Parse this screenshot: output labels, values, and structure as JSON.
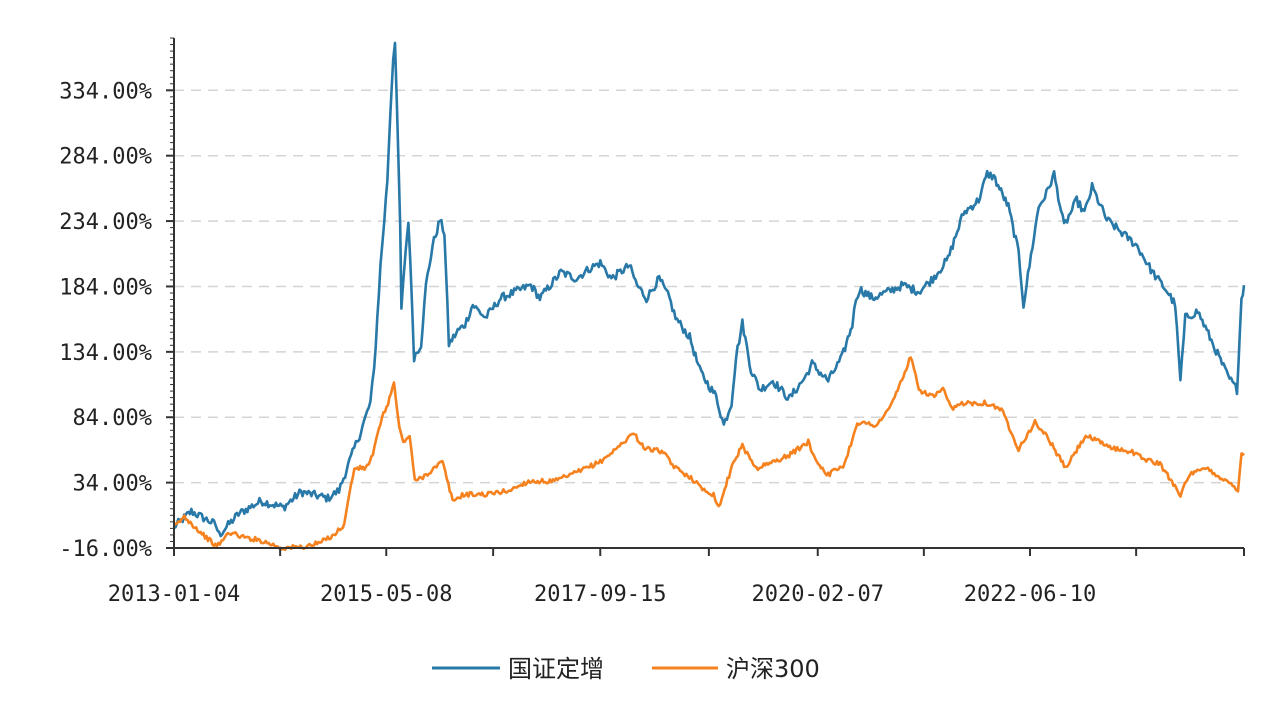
{
  "chart_data": {
    "type": "line",
    "title": "",
    "xlabel": "",
    "ylabel": "",
    "x_range": [
      "2013-01-04",
      "2024-10-18"
    ],
    "x_ticks": [
      "2013-01-04",
      "2015-05-08",
      "2017-09-15",
      "2020-02-07",
      "2022-06-10"
    ],
    "ylim": [
      -16,
      374
    ],
    "y_ticks": [
      -16,
      34,
      84,
      134,
      184,
      234,
      284,
      334
    ],
    "y_tick_labels": [
      "-16.00%",
      "34.00%",
      "84.00%",
      "134.00%",
      "184.00%",
      "234.00%",
      "284.00%",
      "334.00%"
    ],
    "y_unit": "%",
    "grid": "horizontal-dashed",
    "legend_position": "bottom-center",
    "series": [
      {
        "name": "国证定增",
        "color": "#2878a8",
        "points": [
          [
            "2013-01-04",
            0
          ],
          [
            "2013-03-15",
            12
          ],
          [
            "2013-06-20",
            2
          ],
          [
            "2013-07-05",
            -6
          ],
          [
            "2013-09-20",
            10
          ],
          [
            "2013-12-20",
            20
          ],
          [
            "2014-03-20",
            15
          ],
          [
            "2014-05-30",
            27
          ],
          [
            "2014-09-15",
            22
          ],
          [
            "2014-10-30",
            28
          ],
          [
            "2014-12-30",
            60
          ],
          [
            "2015-01-20",
            70
          ],
          [
            "2015-03-05",
            95
          ],
          [
            "2015-03-20",
            120
          ],
          [
            "2015-04-15",
            200
          ],
          [
            "2015-04-30",
            235
          ],
          [
            "2015-05-12",
            265
          ],
          [
            "2015-05-25",
            320
          ],
          [
            "2015-06-05",
            360
          ],
          [
            "2015-06-12",
            370
          ],
          [
            "2015-06-20",
            320
          ],
          [
            "2015-07-03",
            230
          ],
          [
            "2015-07-08",
            165
          ],
          [
            "2015-07-20",
            200
          ],
          [
            "2015-08-05",
            235
          ],
          [
            "2015-08-20",
            170
          ],
          [
            "2015-08-28",
            130
          ],
          [
            "2015-09-25",
            140
          ],
          [
            "2015-10-15",
            185
          ],
          [
            "2015-11-10",
            215
          ],
          [
            "2015-12-10",
            235
          ],
          [
            "2015-12-28",
            225
          ],
          [
            "2016-01-15",
            140
          ],
          [
            "2016-02-20",
            150
          ],
          [
            "2016-03-20",
            155
          ],
          [
            "2016-04-20",
            170
          ],
          [
            "2016-06-10",
            160
          ],
          [
            "2016-08-10",
            175
          ],
          [
            "2016-10-10",
            180
          ],
          [
            "2016-12-10",
            185
          ],
          [
            "2017-01-15",
            175
          ],
          [
            "2017-04-10",
            195
          ],
          [
            "2017-06-10",
            190
          ],
          [
            "2017-08-05",
            198
          ],
          [
            "2017-09-15",
            202
          ],
          [
            "2017-10-30",
            190
          ],
          [
            "2018-01-10",
            200
          ],
          [
            "2018-02-10",
            185
          ],
          [
            "2018-03-20",
            175
          ],
          [
            "2018-05-10",
            190
          ],
          [
            "2018-06-20",
            175
          ],
          [
            "2018-07-15",
            160
          ],
          [
            "2018-09-10",
            145
          ],
          [
            "2018-10-20",
            120
          ],
          [
            "2018-11-20",
            110
          ],
          [
            "2018-12-25",
            100
          ],
          [
            "2019-01-25",
            78
          ],
          [
            "2019-02-25",
            95
          ],
          [
            "2019-03-15",
            130
          ],
          [
            "2019-04-10",
            156
          ],
          [
            "2019-05-15",
            120
          ],
          [
            "2019-06-20",
            105
          ],
          [
            "2019-08-10",
            112
          ],
          [
            "2019-10-15",
            98
          ],
          [
            "2019-12-20",
            115
          ],
          [
            "2020-01-15",
            125
          ],
          [
            "2020-02-07",
            120
          ],
          [
            "2020-03-20",
            112
          ],
          [
            "2020-05-15",
            130
          ],
          [
            "2020-06-25",
            155
          ],
          [
            "2020-07-10",
            175
          ],
          [
            "2020-07-25",
            182
          ],
          [
            "2020-09-15",
            175
          ],
          [
            "2020-11-15",
            180
          ],
          [
            "2021-01-15",
            185
          ],
          [
            "2021-03-20",
            180
          ],
          [
            "2021-05-15",
            190
          ],
          [
            "2021-07-15",
            205
          ],
          [
            "2021-09-15",
            240
          ],
          [
            "2021-11-15",
            250
          ],
          [
            "2021-12-20",
            270
          ],
          [
            "2022-01-15",
            268
          ],
          [
            "2022-03-15",
            245
          ],
          [
            "2022-04-25",
            210
          ],
          [
            "2022-05-15",
            170
          ],
          [
            "2022-06-20",
            215
          ],
          [
            "2022-07-15",
            245
          ],
          [
            "2022-08-15",
            255
          ],
          [
            "2022-09-15",
            270
          ],
          [
            "2022-10-25",
            230
          ],
          [
            "2022-12-15",
            250
          ],
          [
            "2023-01-15",
            240
          ],
          [
            "2023-02-15",
            260
          ],
          [
            "2023-04-15",
            235
          ],
          [
            "2023-06-15",
            225
          ],
          [
            "2023-08-15",
            215
          ],
          [
            "2023-10-15",
            195
          ],
          [
            "2023-12-15",
            180
          ],
          [
            "2024-01-15",
            170
          ],
          [
            "2024-02-05",
            112
          ],
          [
            "2024-02-25",
            160
          ],
          [
            "2024-04-15",
            165
          ],
          [
            "2024-06-15",
            140
          ],
          [
            "2024-08-15",
            115
          ],
          [
            "2024-09-20",
            105
          ],
          [
            "2024-10-08",
            175
          ],
          [
            "2024-10-18",
            185
          ]
        ]
      },
      {
        "name": "沪深300",
        "color": "#f5821f",
        "points": [
          [
            "2013-01-04",
            0
          ],
          [
            "2013-02-15",
            8
          ],
          [
            "2013-04-15",
            -3
          ],
          [
            "2013-06-25",
            -15
          ],
          [
            "2013-08-15",
            -4
          ],
          [
            "2013-10-15",
            -8
          ],
          [
            "2013-12-15",
            -10
          ],
          [
            "2014-03-15",
            -16
          ],
          [
            "2014-06-15",
            -15
          ],
          [
            "2014-08-15",
            -12
          ],
          [
            "2014-10-15",
            -5
          ],
          [
            "2014-11-20",
            2
          ],
          [
            "2014-12-10",
            25
          ],
          [
            "2014-12-31",
            45
          ],
          [
            "2015-02-15",
            45
          ],
          [
            "2015-03-15",
            55
          ],
          [
            "2015-04-15",
            80
          ],
          [
            "2015-05-15",
            95
          ],
          [
            "2015-06-08",
            110
          ],
          [
            "2015-06-30",
            75
          ],
          [
            "2015-07-15",
            65
          ],
          [
            "2015-08-10",
            70
          ],
          [
            "2015-08-31",
            35
          ],
          [
            "2015-10-15",
            40
          ],
          [
            "2015-12-20",
            50
          ],
          [
            "2016-01-30",
            20
          ],
          [
            "2016-03-15",
            25
          ],
          [
            "2016-06-15",
            25
          ],
          [
            "2016-09-15",
            28
          ],
          [
            "2016-11-30",
            35
          ],
          [
            "2017-03-15",
            35
          ],
          [
            "2017-06-15",
            42
          ],
          [
            "2017-09-15",
            50
          ],
          [
            "2017-11-20",
            60
          ],
          [
            "2018-01-25",
            72
          ],
          [
            "2018-03-15",
            60
          ],
          [
            "2018-05-20",
            58
          ],
          [
            "2018-07-15",
            45
          ],
          [
            "2018-09-15",
            38
          ],
          [
            "2018-10-25",
            30
          ],
          [
            "2018-12-15",
            25
          ],
          [
            "2019-01-05",
            15
          ],
          [
            "2019-03-05",
            50
          ],
          [
            "2019-04-10",
            62
          ],
          [
            "2019-06-05",
            45
          ],
          [
            "2019-08-15",
            50
          ],
          [
            "2019-10-15",
            55
          ],
          [
            "2019-12-31",
            65
          ],
          [
            "2020-02-03",
            50
          ],
          [
            "2020-03-20",
            40
          ],
          [
            "2020-05-25",
            48
          ],
          [
            "2020-07-15",
            80
          ],
          [
            "2020-09-30",
            78
          ],
          [
            "2020-11-20",
            90
          ],
          [
            "2021-01-05",
            110
          ],
          [
            "2021-02-15",
            130
          ],
          [
            "2021-03-20",
            105
          ],
          [
            "2021-05-15",
            100
          ],
          [
            "2021-06-25",
            105
          ],
          [
            "2021-07-30",
            90
          ],
          [
            "2021-09-15",
            95
          ],
          [
            "2021-12-15",
            95
          ],
          [
            "2022-02-15",
            90
          ],
          [
            "2022-04-25",
            60
          ],
          [
            "2022-06-30",
            80
          ],
          [
            "2022-08-15",
            70
          ],
          [
            "2022-10-31",
            45
          ],
          [
            "2023-01-20",
            70
          ],
          [
            "2023-03-15",
            65
          ],
          [
            "2023-05-15",
            60
          ],
          [
            "2023-07-20",
            58
          ],
          [
            "2023-09-15",
            52
          ],
          [
            "2023-11-15",
            48
          ],
          [
            "2024-01-20",
            30
          ],
          [
            "2024-02-05",
            25
          ],
          [
            "2024-03-15",
            40
          ],
          [
            "2024-05-20",
            45
          ],
          [
            "2024-07-15",
            38
          ],
          [
            "2024-09-15",
            30
          ],
          [
            "2024-09-24",
            28
          ],
          [
            "2024-10-08",
            58
          ],
          [
            "2024-10-18",
            55
          ]
        ]
      }
    ]
  }
}
